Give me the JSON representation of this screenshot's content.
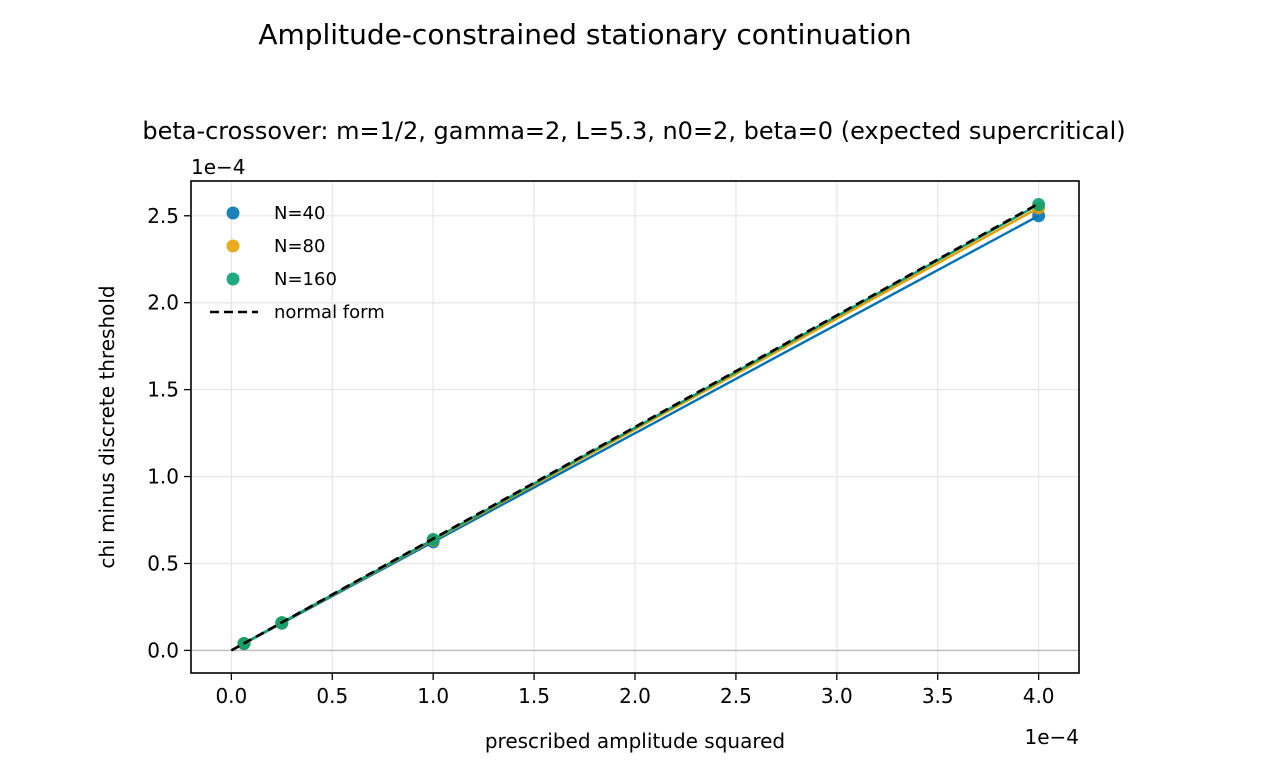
{
  "figure": {
    "suptitle": "Amplitude-constrained stationary continuation"
  },
  "chart_data": {
    "type": "scatter",
    "title": "beta-crossover: m=1/2, gamma=2, L=5.3, n0=2, beta=0 (expected supercritical)",
    "xlabel": "prescribed amplitude squared",
    "ylabel": "chi minus discrete threshold",
    "x_offset_text": "1e−4",
    "y_offset_text": "1e−4",
    "xlim": [
      -0.2,
      4.2
    ],
    "ylim": [
      -0.13,
      2.7
    ],
    "x_ticks": [
      0.0,
      0.5,
      1.0,
      1.5,
      2.0,
      2.5,
      3.0,
      3.5,
      4.0
    ],
    "x_tick_labels": [
      "0.0",
      "0.5",
      "1.0",
      "1.5",
      "2.0",
      "2.5",
      "3.0",
      "3.5",
      "4.0"
    ],
    "y_ticks": [
      0.0,
      0.5,
      1.0,
      1.5,
      2.0,
      2.5
    ],
    "y_tick_labels": [
      "0.0",
      "0.5",
      "1.0",
      "1.5",
      "2.0",
      "2.5"
    ],
    "grid": true,
    "zero_line": true,
    "legend_position": "upper-left",
    "series": [
      {
        "name": "N=40",
        "color": "#0072b2",
        "x": [
          0.0625,
          0.25,
          1.0,
          4.0
        ],
        "y": [
          0.039,
          0.156,
          0.624,
          2.5
        ]
      },
      {
        "name": "N=80",
        "color": "#e69f00",
        "x": [
          0.0625,
          0.25,
          1.0,
          4.0
        ],
        "y": [
          0.04,
          0.159,
          0.634,
          2.545
        ]
      },
      {
        "name": "N=160",
        "color": "#009e73",
        "x": [
          0.0625,
          0.25,
          1.0,
          4.0
        ],
        "y": [
          0.04,
          0.16,
          0.638,
          2.565
        ]
      }
    ],
    "reference_line": {
      "name": "normal form",
      "color": "#000000",
      "style": "dashed",
      "x": [
        0.0,
        4.0
      ],
      "y": [
        0.0,
        2.57
      ]
    }
  }
}
